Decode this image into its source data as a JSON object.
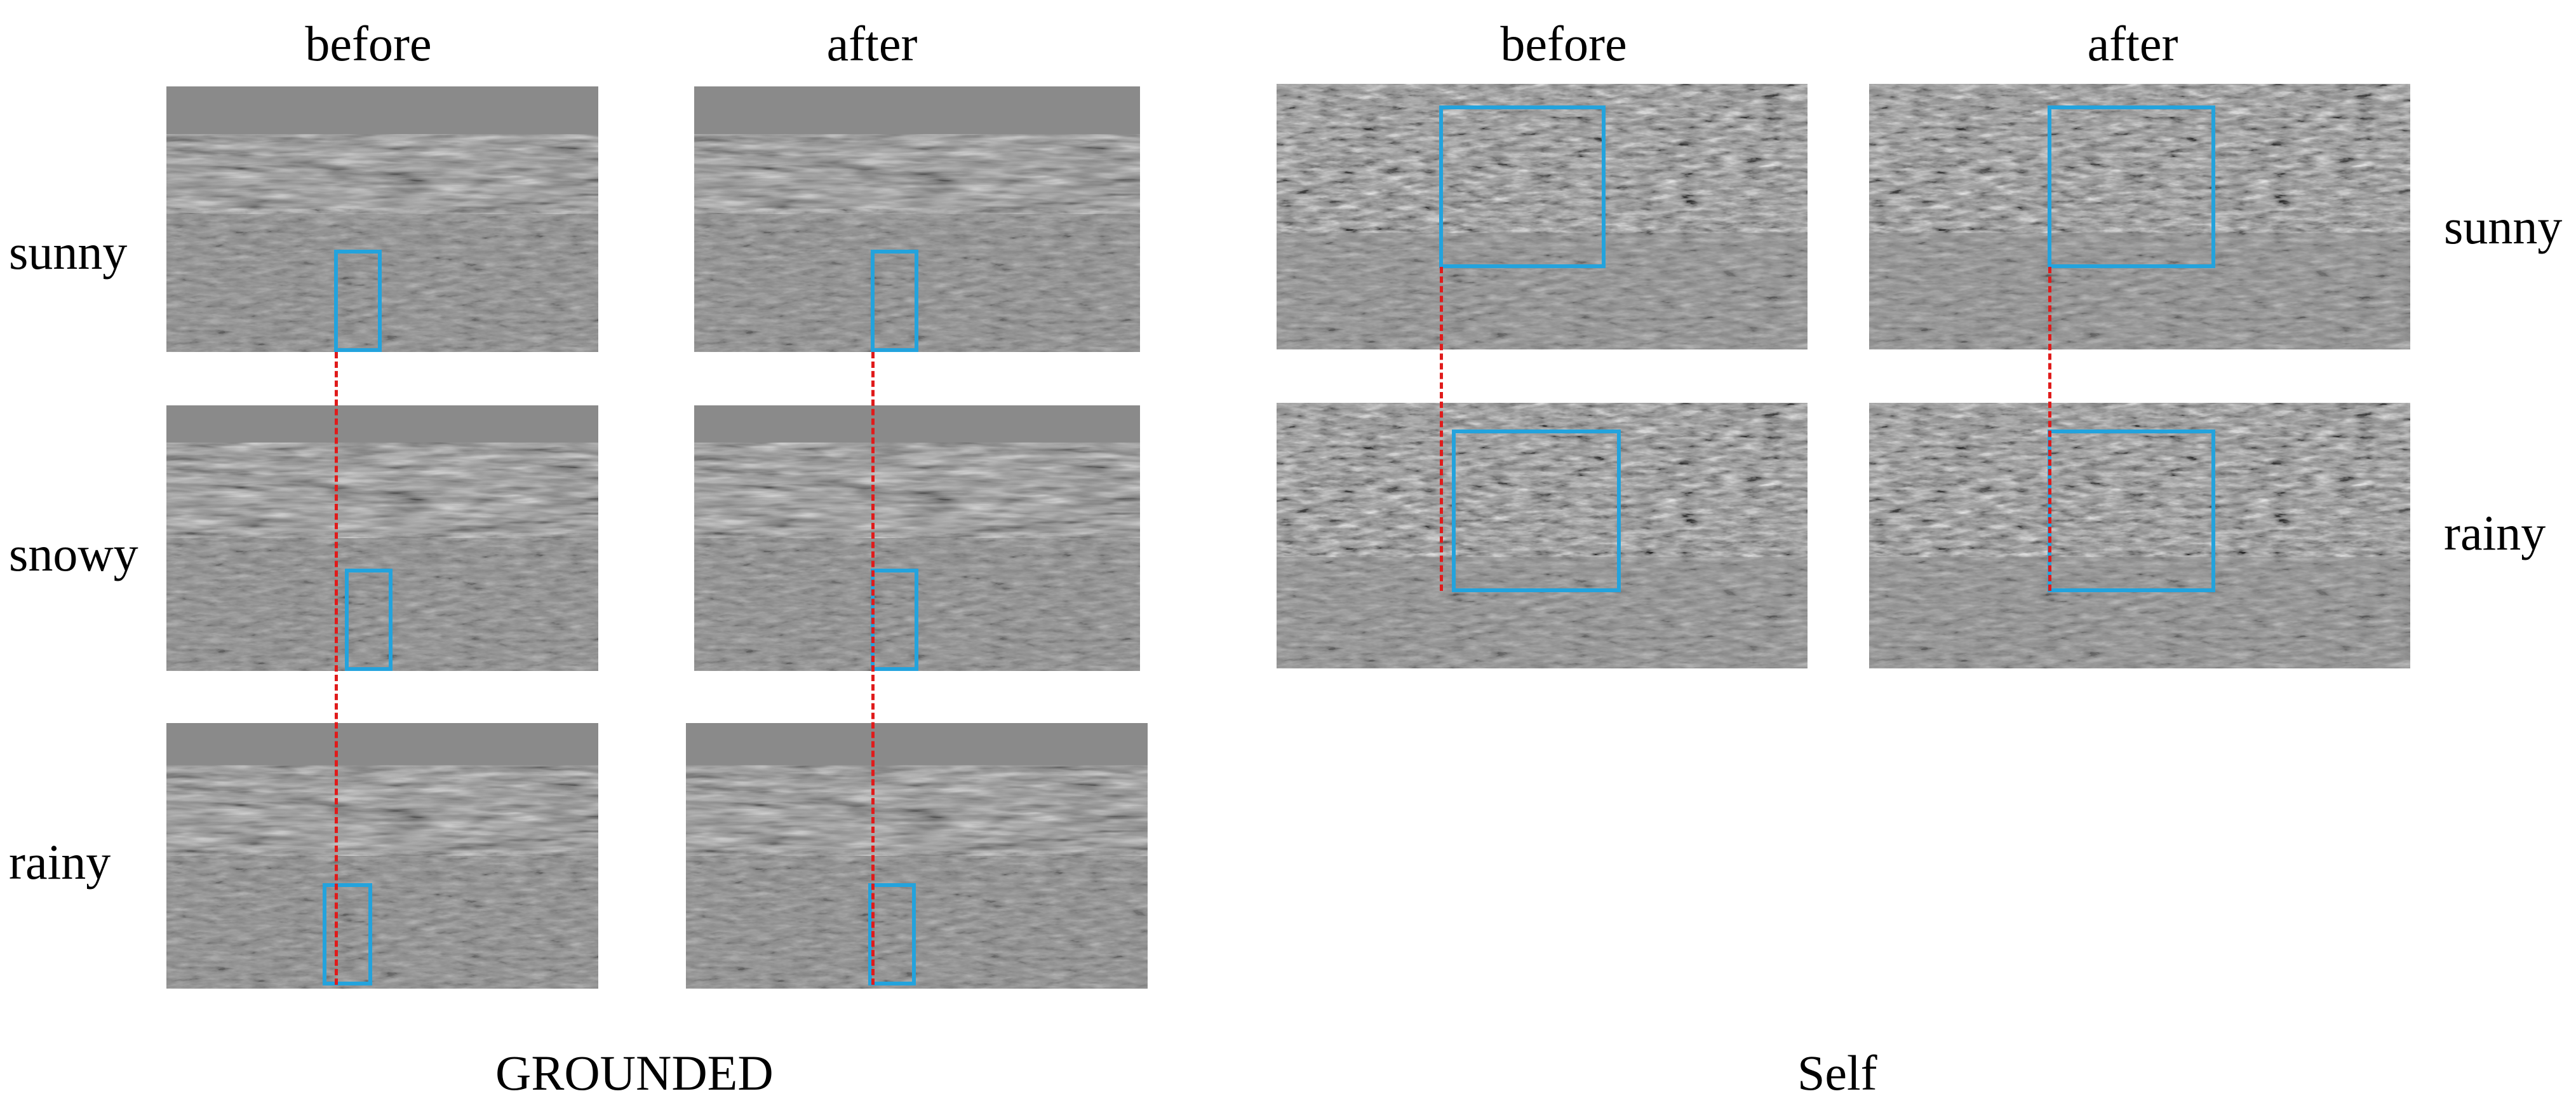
{
  "groups": [
    {
      "caption": "GROUNDED",
      "columns": [
        "before",
        "after"
      ],
      "rows": [
        "sunny",
        "snowy",
        "rainy"
      ]
    },
    {
      "caption": "Self",
      "columns": [
        "before",
        "after"
      ],
      "rows": [
        "sunny",
        "rainy"
      ]
    }
  ],
  "colors": {
    "highlight_box": "#23a3dd",
    "alignment_line": "#e01b1b",
    "background": "#ffffff"
  }
}
